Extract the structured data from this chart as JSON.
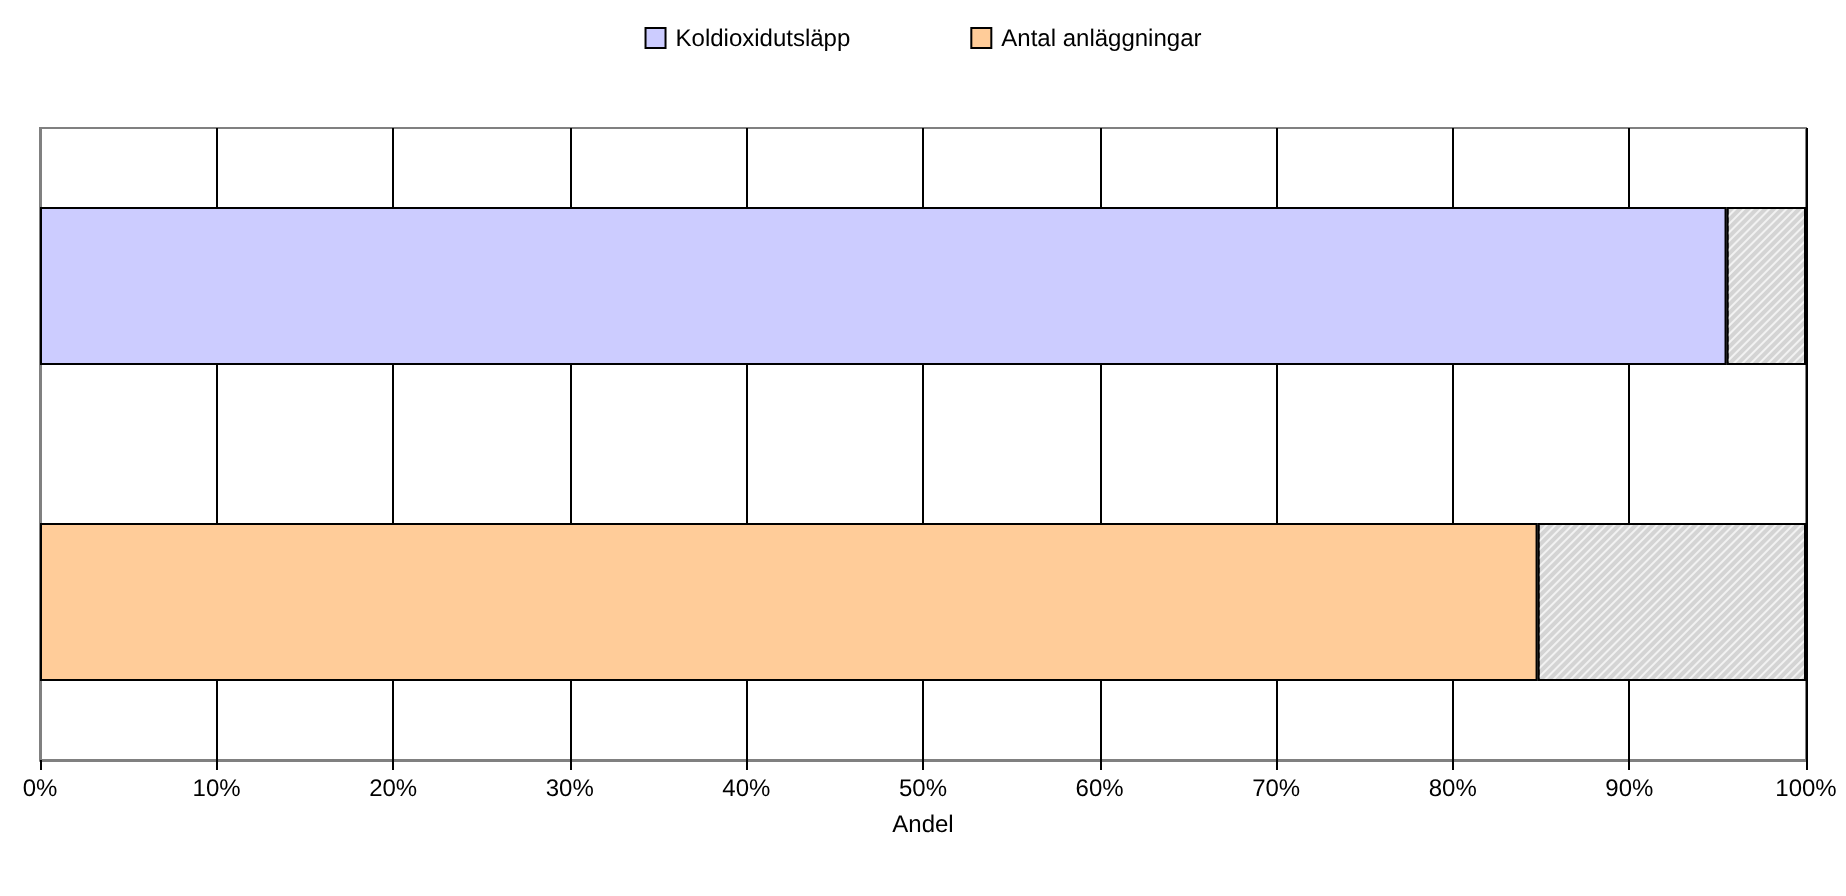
{
  "chart_data": {
    "type": "bar",
    "orientation": "horizontal",
    "stacked": true,
    "xlabel": "Andel",
    "categories": [
      null,
      null
    ],
    "series": [
      {
        "name": "Koldioxidutsläpp",
        "color": "#ccccff",
        "values": [
          95.5,
          null
        ]
      },
      {
        "name": "Antal anläggningar",
        "color": "#ffcc99",
        "values": [
          null,
          84.8
        ]
      },
      {
        "color": "#d4d4d4",
        "values": [
          4.5,
          15.2
        ]
      }
    ],
    "xlim": [
      0,
      100
    ],
    "xticks": [
      {
        "value": 0,
        "label": "0%"
      },
      {
        "value": 10,
        "label": "10%"
      },
      {
        "value": 20,
        "label": "20%"
      },
      {
        "value": 30,
        "label": "30%"
      },
      {
        "value": 40,
        "label": "40%"
      },
      {
        "value": 50,
        "label": "50%"
      },
      {
        "value": 60,
        "label": "60%"
      },
      {
        "value": 70,
        "label": "70%"
      },
      {
        "value": 80,
        "label": "80%"
      },
      {
        "value": 90,
        "label": "90%"
      },
      {
        "value": 100,
        "label": "100%"
      }
    ],
    "grid": "x",
    "legend": "top"
  }
}
